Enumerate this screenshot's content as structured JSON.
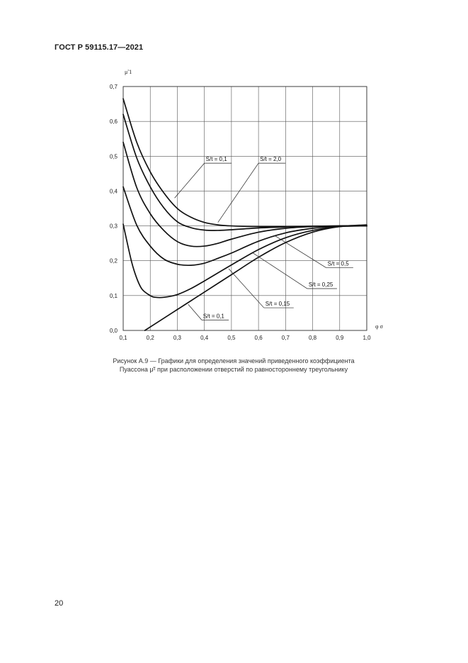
{
  "document": {
    "header": "ГОСТ Р 59115.17—2021",
    "page_number": "20"
  },
  "caption": {
    "line1": "Рисунок А.9 — Графики для определения значений приведенного коэффициента",
    "line2": "Пуассона μ̃¹ при расположении отверстий по равностороннему треугольнику"
  },
  "chart_data": {
    "type": "line",
    "title": "",
    "xlabel": "φ σ",
    "ylabel": "μ̃ 1",
    "xlim": [
      0.1,
      1.0
    ],
    "ylim": [
      0.0,
      0.7
    ],
    "grid": true,
    "x_ticks": [
      "0,1",
      "0,2",
      "0,3",
      "0,4",
      "0,5",
      "0,6",
      "0,7",
      "0,8",
      "0,9",
      "1,0"
    ],
    "y_ticks": [
      "0,0",
      "0,1",
      "0,2",
      "0,3",
      "0,4",
      "0,5",
      "0,6",
      "0,7"
    ],
    "series": [
      {
        "name": "",
        "x": [
          0.1,
          0.15,
          0.2,
          0.25,
          0.3,
          0.35,
          0.4,
          0.45,
          0.5,
          0.6,
          0.7,
          0.8,
          0.9,
          1.0
        ],
        "y": [
          0.665,
          0.54,
          0.455,
          0.395,
          0.35,
          0.325,
          0.31,
          0.303,
          0.3,
          0.298,
          0.298,
          0.299,
          0.3,
          0.3
        ]
      },
      {
        "name": "",
        "x": [
          0.1,
          0.15,
          0.2,
          0.25,
          0.3,
          0.35,
          0.4,
          0.45,
          0.5,
          0.6,
          0.7,
          0.8,
          0.9,
          1.0
        ],
        "y": [
          0.62,
          0.495,
          0.412,
          0.352,
          0.312,
          0.295,
          0.288,
          0.287,
          0.289,
          0.294,
          0.297,
          0.299,
          0.3,
          0.3
        ]
      },
      {
        "name": "",
        "x": [
          0.1,
          0.15,
          0.2,
          0.25,
          0.3,
          0.35,
          0.4,
          0.45,
          0.5,
          0.6,
          0.7,
          0.8,
          0.9,
          1.0
        ],
        "y": [
          0.54,
          0.41,
          0.335,
          0.287,
          0.255,
          0.242,
          0.242,
          0.25,
          0.262,
          0.282,
          0.293,
          0.298,
          0.3,
          0.3
        ]
      },
      {
        "name": "",
        "x": [
          0.1,
          0.15,
          0.2,
          0.25,
          0.3,
          0.35,
          0.4,
          0.45,
          0.5,
          0.6,
          0.7,
          0.8,
          0.9,
          1.0
        ],
        "y": [
          0.412,
          0.302,
          0.242,
          0.205,
          0.19,
          0.187,
          0.193,
          0.207,
          0.222,
          0.256,
          0.28,
          0.293,
          0.299,
          0.3
        ]
      },
      {
        "name": "",
        "x": [
          0.1,
          0.13,
          0.15,
          0.17,
          0.2,
          0.22,
          0.25,
          0.3,
          0.35,
          0.4,
          0.5,
          0.6,
          0.7,
          0.8,
          0.9,
          1.0
        ],
        "y": [
          0.305,
          0.2,
          0.15,
          0.118,
          0.1,
          0.095,
          0.095,
          0.103,
          0.12,
          0.142,
          0.188,
          0.232,
          0.266,
          0.287,
          0.298,
          0.3
        ]
      },
      {
        "name": "",
        "x": [
          0.18,
          0.25,
          0.3,
          0.35,
          0.4,
          0.5,
          0.6,
          0.7,
          0.8,
          0.9,
          1.0
        ],
        "y": [
          0.0,
          0.035,
          0.06,
          0.085,
          0.11,
          0.16,
          0.21,
          0.252,
          0.282,
          0.298,
          0.303
        ]
      }
    ],
    "annotations": [
      {
        "text": "S/t = 0,1",
        "label_x": 0.4,
        "label_y": 0.48,
        "underline_to": 0.5,
        "pointer": [
          [
            0.4,
            0.48
          ],
          [
            0.29,
            0.38
          ]
        ]
      },
      {
        "text": "S/t = 2,0",
        "label_x": 0.6,
        "label_y": 0.48,
        "underline_to": 0.7,
        "pointer": [
          [
            0.6,
            0.48
          ],
          [
            0.45,
            0.31
          ]
        ]
      },
      {
        "text": "S/t = 0,5",
        "label_x": 0.85,
        "label_y": 0.18,
        "underline_to": 0.95,
        "pointer": [
          [
            0.85,
            0.18
          ],
          [
            0.66,
            0.272
          ]
        ]
      },
      {
        "text": "S/t = 0,25",
        "label_x": 0.78,
        "label_y": 0.12,
        "underline_to": 0.89,
        "pointer": [
          [
            0.78,
            0.12
          ],
          [
            0.58,
            0.222
          ]
        ]
      },
      {
        "text": "S/t = 0,15",
        "label_x": 0.62,
        "label_y": 0.065,
        "underline_to": 0.73,
        "pointer": [
          [
            0.62,
            0.065
          ],
          [
            0.49,
            0.177
          ]
        ]
      },
      {
        "text": "S/t = 0,1",
        "label_x": 0.39,
        "label_y": 0.03,
        "underline_to": 0.49,
        "pointer": [
          [
            0.39,
            0.03
          ],
          [
            0.34,
            0.075
          ]
        ]
      }
    ]
  }
}
